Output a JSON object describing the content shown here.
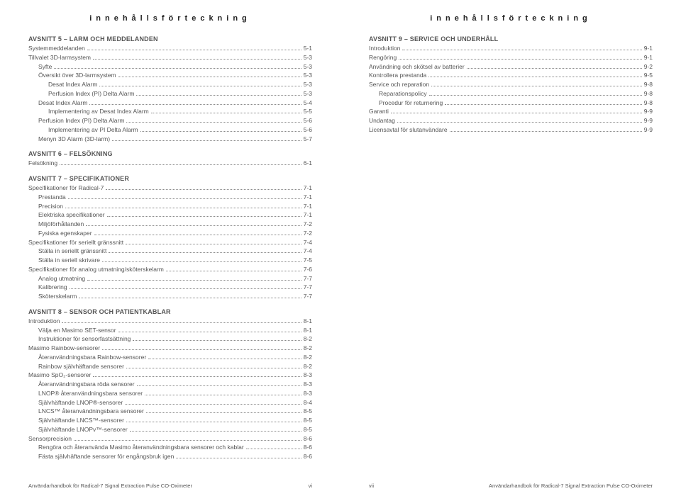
{
  "header": "innehållsförteckning",
  "footer_left_text": "Användarhandbok för Radical-7 Signal Extraction Pulse CO-Oximeter",
  "footer_right_text": "Användarhandbok för Radical-7 Signal Extraction Pulse CO-Oximeter",
  "pagenum_left": "vi",
  "pagenum_right": "vii",
  "left_sections": [
    {
      "title": "AVSNITT 5 – LARM OCH MEDDELANDEN",
      "items": [
        {
          "label": "Systemmeddelanden",
          "pg": "5-1",
          "indent": 0
        },
        {
          "label": "Tillvalet 3D-larmsystem",
          "pg": "5-3",
          "indent": 0
        },
        {
          "label": "Syfte",
          "pg": "5-3",
          "indent": 1
        },
        {
          "label": "Översikt över 3D-larmsystem",
          "pg": "5-3",
          "indent": 1
        },
        {
          "label": "Desat Index Alarm",
          "pg": "5-3",
          "indent": 2
        },
        {
          "label": "Perfusion Index (PI) Delta Alarm",
          "pg": "5-3",
          "indent": 2
        },
        {
          "label": "Desat Index Alarm",
          "pg": "5-4",
          "indent": 1
        },
        {
          "label": "Implementering av Desat Index Alarm",
          "pg": "5-5",
          "indent": 2
        },
        {
          "label": "Perfusion Index (PI) Delta Alarm",
          "pg": "5-6",
          "indent": 1
        },
        {
          "label": "Implementering av PI Delta Alarm",
          "pg": "5-6",
          "indent": 2
        },
        {
          "label": "Menyn 3D Alarm (3D-larm)",
          "pg": "5-7",
          "indent": 1
        }
      ]
    },
    {
      "title": "AVSNITT 6 – FELSÖKNING",
      "items": [
        {
          "label": "Felsökning",
          "pg": "6-1",
          "indent": 0
        }
      ]
    },
    {
      "title": "AVSNITT 7 – SPECIFIKATIONER",
      "items": [
        {
          "label": "Specifikationer för Radical-7",
          "pg": "7-1",
          "indent": 0
        },
        {
          "label": "Prestanda",
          "pg": "7-1",
          "indent": 1
        },
        {
          "label": "Precision",
          "pg": "7-1",
          "indent": 1
        },
        {
          "label": "Elektriska specifikationer",
          "pg": "7-1",
          "indent": 1
        },
        {
          "label": "Miljöförhållanden",
          "pg": "7-2",
          "indent": 1
        },
        {
          "label": "Fysiska egenskaper",
          "pg": "7-2",
          "indent": 1
        },
        {
          "label": "Specifikationer för seriellt gränssnitt",
          "pg": "7-4",
          "indent": 0
        },
        {
          "label": "Ställa in seriellt gränssnitt",
          "pg": "7-4",
          "indent": 1
        },
        {
          "label": "Ställa in seriell skrivare",
          "pg": "7-5",
          "indent": 1
        },
        {
          "label": "Specifikationer för analog utmatning/sköterskelarm",
          "pg": "7-6",
          "indent": 0
        },
        {
          "label": "Analog utmatning",
          "pg": "7-7",
          "indent": 1
        },
        {
          "label": "Kalibrering",
          "pg": "7-7",
          "indent": 1
        },
        {
          "label": "Sköterskelarm",
          "pg": "7-7",
          "indent": 1
        }
      ]
    },
    {
      "title": "AVSNITT 8 – SENSOR OCH PATIENTKABLAR",
      "items": [
        {
          "label": "Introduktion",
          "pg": "8-1",
          "indent": 0
        },
        {
          "label": "Välja en Masimo SET-sensor",
          "pg": "8-1",
          "indent": 1
        },
        {
          "label": "Instruktioner för sensorfastsättning",
          "pg": "8-2",
          "indent": 1
        },
        {
          "label": "Masimo Rainbow-sensorer",
          "pg": "8-2",
          "indent": 0
        },
        {
          "label": "Återanvändningsbara Rainbow-sensorer",
          "pg": "8-2",
          "indent": 1
        },
        {
          "label": "Rainbow självhäftande sensorer",
          "pg": "8-2",
          "indent": 1
        },
        {
          "label": "Masimo SpO₂-sensorer",
          "pg": "8-3",
          "indent": 0
        },
        {
          "label": "Återanvändningsbara röda sensorer",
          "pg": "8-3",
          "indent": 1
        },
        {
          "label": "LNOP® återanvändningsbara sensorer",
          "pg": "8-3",
          "indent": 1
        },
        {
          "label": "Självhäftande LNOP®-sensorer",
          "pg": "8-4",
          "indent": 1
        },
        {
          "label": "LNCS™ återanvändningsbara sensorer",
          "pg": "8-5",
          "indent": 1
        },
        {
          "label": "Självhäftande LNCS™-sensorer",
          "pg": "8-5",
          "indent": 1
        },
        {
          "label": "Självhäftande LNOPv™-sensorer",
          "pg": "8-5",
          "indent": 1
        },
        {
          "label": "Sensorprecision",
          "pg": "8-6",
          "indent": 0
        },
        {
          "label": "Rengöra och återanvända Masimo återanvändningsbara sensorer och kablar",
          "pg": "8-6",
          "indent": 1
        },
        {
          "label": "Fästa självhäftande sensorer för engångsbruk igen",
          "pg": "8-6",
          "indent": 1
        }
      ]
    }
  ],
  "right_sections": [
    {
      "title": "AVSNITT 9 – SERVICE OCH UNDERHÅLL",
      "items": [
        {
          "label": "Introduktion",
          "pg": "9-1",
          "indent": 0
        },
        {
          "label": "Rengöring",
          "pg": "9-1",
          "indent": 0
        },
        {
          "label": "Användning och skötsel av batterier",
          "pg": "9-2",
          "indent": 0
        },
        {
          "label": "Kontrollera prestanda",
          "pg": "9-5",
          "indent": 0
        },
        {
          "label": "Service och reparation",
          "pg": "9-8",
          "indent": 0
        },
        {
          "label": "Reparationspolicy",
          "pg": "9-8",
          "indent": 1
        },
        {
          "label": "Procedur för returnering",
          "pg": "9-8",
          "indent": 1
        },
        {
          "label": "Garanti",
          "pg": "9-9",
          "indent": 0
        },
        {
          "label": "Undantag",
          "pg": "9-9",
          "indent": 0
        },
        {
          "label": "Licensavtal för slutanvändare",
          "pg": "9-9",
          "indent": 0
        }
      ]
    }
  ]
}
